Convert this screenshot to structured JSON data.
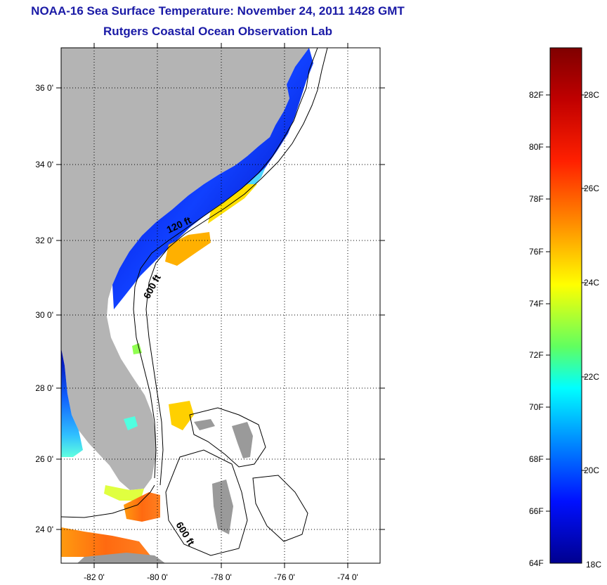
{
  "title": "NOAA-16 Sea Surface Temperature:  November 24, 2011 1428 GMT",
  "subtitle": "Rutgers Coastal Ocean Observation Lab",
  "map": {
    "lat_labels": [
      "36 0'",
      "34 0'",
      "32 0'",
      "30 0'",
      "28 0'",
      "26 0'",
      "24 0'"
    ],
    "lon_labels": [
      "-82 0'",
      "-80 0'",
      "-78 0'",
      "-76 0'",
      "-74 0'"
    ],
    "contours": [
      {
        "label": "120 ft"
      },
      {
        "label": "600 ft"
      },
      {
        "label": "600 ft"
      }
    ],
    "colors": {
      "land": "#b4b4b4",
      "ocean_nodata": "#ffffff"
    }
  },
  "colorbar": {
    "fahrenheit_labels": [
      "82F",
      "80F",
      "78F",
      "76F",
      "74F",
      "72F",
      "70F",
      "68F",
      "66F",
      "64F"
    ],
    "celsius_labels": [
      "28C",
      "26C",
      "24C",
      "22C",
      "20C",
      "18C"
    ],
    "colors": [
      "#7f0000",
      "#ff0000",
      "#ff8000",
      "#ffff00",
      "#80ff80",
      "#00ffff",
      "#0080ff",
      "#0000ff",
      "#00008f"
    ]
  }
}
